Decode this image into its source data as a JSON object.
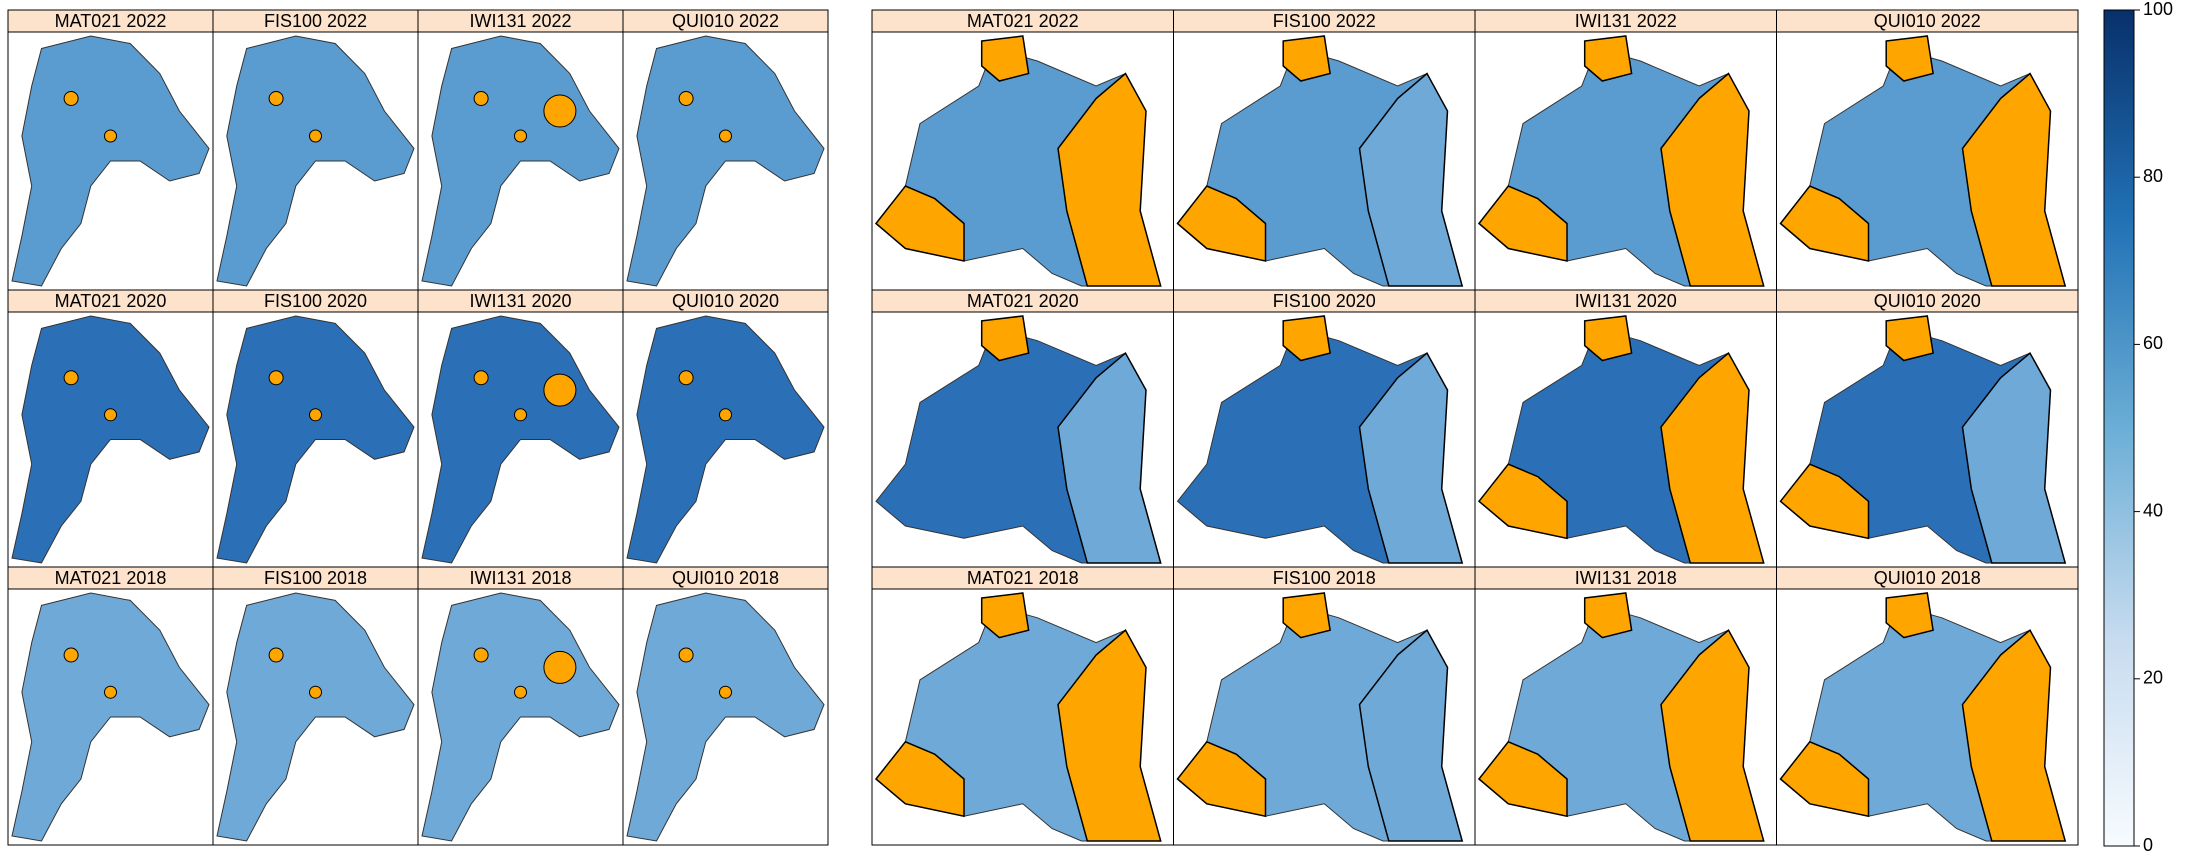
{
  "left_grid": {
    "titles": [
      "MAT021 2022",
      "FIS100 2022",
      "IWI131 2022",
      "QUI010 2022",
      "MAT021 2020",
      "FIS100 2020",
      "IWI131 2020",
      "QUI010 2020",
      "MAT021 2018",
      "FIS100 2018",
      "IWI131 2018",
      "QUI010 2018"
    ]
  },
  "right_grid": {
    "titles": [
      "MAT021 2022",
      "FIS100 2022",
      "IWI131 2022",
      "QUI010 2022",
      "MAT021 2020",
      "FIS100 2020",
      "IWI131 2020",
      "QUI010 2020",
      "MAT021 2018",
      "FIS100 2018",
      "IWI131 2018",
      "QUI010 2018"
    ]
  },
  "colorbar": {
    "ylim": [
      0,
      100
    ],
    "yticks": [
      0,
      20,
      40,
      60,
      80,
      100
    ]
  }
}
